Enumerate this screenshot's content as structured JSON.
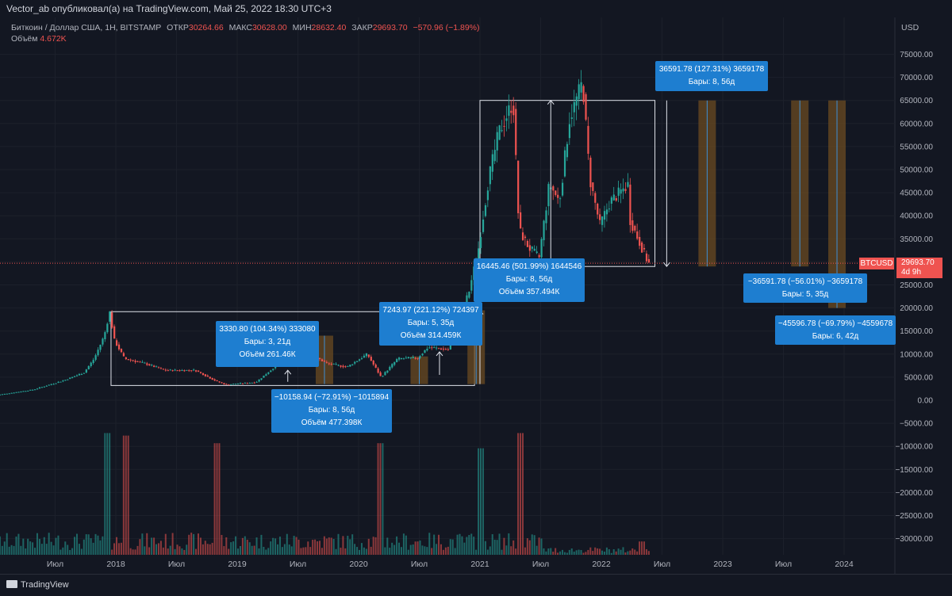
{
  "header": {
    "published": "Vector_ab опубликовал(а) на TradingView.com, Май 25, 2022 18:30 UTC+3"
  },
  "legend": {
    "symbol": "Биткоин / Доллар США, 1Н, BITSTAMP",
    "open_label": "ОТКР",
    "open": "30264.66",
    "high_label": "МАКС",
    "high": "30628.00",
    "low_label": "МИН",
    "low": "28632.40",
    "close_label": "ЗАКР",
    "close": "29693.70",
    "change": "−570.96 (−1.89%)",
    "volume_label": "Объём",
    "volume": "4.672K"
  },
  "axis_currency": "USD",
  "symbol_tag": "BTCUSD",
  "last_price": "29693.70",
  "countdown": "4d 9h",
  "logo_text": "TradingView",
  "colors": {
    "up": "#26a69a",
    "down": "#ef5350",
    "background": "#131722",
    "label_box": "#1e7ed0"
  },
  "annotations": [
    {
      "line1": "3330.80 (104.34%) 333080",
      "line2": "Бары: 3, 21д",
      "line3": "Объём 261.46К"
    },
    {
      "line1": "−10158.94 (−72.91%) −1015894",
      "line2": "Бары: 8, 56д",
      "line3": "Объём 477.398К"
    },
    {
      "line1": "7243.97 (221.12%) 724397",
      "line2": "Бары: 5, 35д",
      "line3": "Объём 314.459К"
    },
    {
      "line1": "16445.46 (501.99%) 1644546",
      "line2": "Бары: 8, 56д",
      "line3": "Объём 357.494К"
    },
    {
      "line1": "36591.78 (127.31%) 3659178",
      "line2": "Бары: 8, 56д"
    },
    {
      "line1": "−36591.78 (−56.01%) −3659178",
      "line2": "Бары: 5, 35д"
    },
    {
      "line1": "−45596.78 (−69.79%) −4559678",
      "line2": "Бары: 6, 42д"
    }
  ],
  "chart_data": {
    "type": "candlestick",
    "y_ticks": [
      75000,
      70000,
      65000,
      60000,
      55000,
      50000,
      45000,
      40000,
      35000,
      30000,
      25000,
      20000,
      15000,
      10000,
      5000,
      0,
      -5000,
      -10000,
      -15000,
      -20000,
      -25000,
      -30000
    ],
    "y_tick_labels": [
      "75000.00",
      "70000.00",
      "65000.00",
      "60000.00",
      "55000.00",
      "50000.00",
      "45000.00",
      "40000.00",
      "35000.00",
      "30000.00",
      "25000.00",
      "20000.00",
      "15000.00",
      "10000.00",
      "5000.00",
      "0.00",
      "−5000.00",
      "−10000.00",
      "−15000.00",
      "−20000.00",
      "−25000.00",
      "−30000.00"
    ],
    "ylim": [
      -32000,
      80000
    ],
    "x_ticks": [
      "Июл",
      "2018",
      "Июл",
      "2019",
      "Июл",
      "2020",
      "Июл",
      "2021",
      "Июл",
      "2022",
      "Июл",
      "2023",
      "Июл",
      "2024"
    ],
    "x_tick_dates": [
      "2017-07",
      "2018-01",
      "2018-07",
      "2019-01",
      "2019-07",
      "2020-01",
      "2020-07",
      "2021-01",
      "2021-07",
      "2022-01",
      "2022-07",
      "2023-01",
      "2023-07",
      "2024-01"
    ],
    "price_path": [
      [
        "2017-01",
        1000
      ],
      [
        "2017-05",
        2300
      ],
      [
        "2017-08",
        4300
      ],
      [
        "2017-10",
        6000
      ],
      [
        "2017-11",
        9000
      ],
      [
        "2017-12",
        14000
      ],
      [
        "2017-12-17",
        19200
      ],
      [
        "2018-01",
        13000
      ],
      [
        "2018-02",
        9000
      ],
      [
        "2018-04",
        8000
      ],
      [
        "2018-06",
        6500
      ],
      [
        "2018-09",
        6500
      ],
      [
        "2018-11",
        4200
      ],
      [
        "2018-12",
        3400
      ],
      [
        "2019-03",
        3900
      ],
      [
        "2019-05",
        7500
      ],
      [
        "2019-06-26",
        12500
      ],
      [
        "2019-08",
        10500
      ],
      [
        "2019-10",
        8000
      ],
      [
        "2019-12",
        7200
      ],
      [
        "2020-02",
        10000
      ],
      [
        "2020-03-12",
        5000
      ],
      [
        "2020-05",
        9000
      ],
      [
        "2020-07",
        9200
      ],
      [
        "2020-08",
        11500
      ],
      [
        "2020-10",
        11000
      ],
      [
        "2020-11",
        18000
      ],
      [
        "2020-12",
        23000
      ],
      [
        "2021-01",
        33000
      ],
      [
        "2021-02",
        48000
      ],
      [
        "2021-03",
        58000
      ],
      [
        "2021-04-14",
        64800
      ],
      [
        "2021-05",
        37000
      ],
      [
        "2021-06",
        33000
      ],
      [
        "2021-07",
        31000
      ],
      [
        "2021-08",
        47000
      ],
      [
        "2021-09",
        43000
      ],
      [
        "2021-10",
        61000
      ],
      [
        "2021-11-10",
        69000
      ],
      [
        "2021-12",
        48000
      ],
      [
        "2022-01",
        38000
      ],
      [
        "2022-02",
        43000
      ],
      [
        "2022-03-28",
        47000
      ],
      [
        "2022-04",
        39000
      ],
      [
        "2022-05-25",
        29693.7
      ]
    ],
    "volume_peaks": [
      [
        "2017-12",
        48
      ],
      [
        "2018-02",
        47
      ],
      [
        "2018-11",
        44
      ],
      [
        "2020-03",
        44
      ],
      [
        "2021-01",
        42
      ],
      [
        "2021-05",
        48
      ],
      [
        "2022-05",
        15
      ]
    ],
    "rectangles": [
      {
        "from": "2017-12-17",
        "to": "2020-12-15",
        "top": 19200,
        "bottom": 3200
      },
      {
        "from": "2021-01-01",
        "to": "2022-06-10",
        "top": 65000,
        "bottom": 29000
      }
    ],
    "projection_bars": [
      {
        "date": "2019-09-20",
        "top": 14000,
        "bottom": 3500
      },
      {
        "date": "2020-07-01",
        "top": 9500,
        "bottom": 3500
      },
      {
        "date": "2020-12-20",
        "top": 19500,
        "bottom": 3500
      },
      {
        "date": "2022-11-15",
        "top": 65000,
        "bottom": 29000
      },
      {
        "date": "2023-08-20",
        "top": 65000,
        "bottom": 29000
      },
      {
        "date": "2023-12-10",
        "top": 65000,
        "bottom": 20000
      }
    ],
    "last_price": 29693.7
  }
}
